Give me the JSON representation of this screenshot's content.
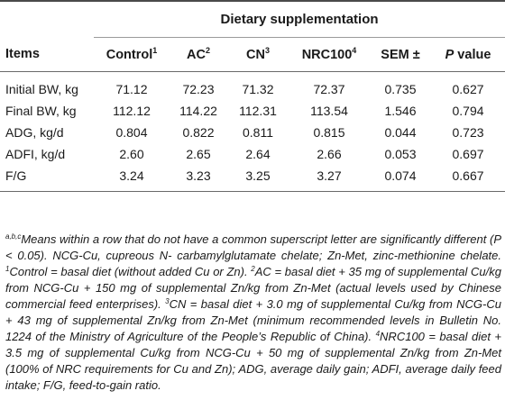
{
  "table": {
    "group_header": "Dietary supplementation",
    "columns": {
      "items": "Items",
      "control": "Control",
      "control_sup": "1",
      "ac": "AC",
      "ac_sup": "2",
      "cn": "CN",
      "cn_sup": "3",
      "nrc": "NRC100",
      "nrc_sup": "4",
      "sem": "SEM ±",
      "p_italic": "P",
      "p_rest": " value"
    },
    "rows": [
      {
        "item": "Initial BW, kg",
        "control": "71.12",
        "ac": "72.23",
        "cn": "71.32",
        "nrc": "72.37",
        "sem": "0.735",
        "p": "0.627"
      },
      {
        "item": "Final BW, kg",
        "control": "112.12",
        "ac": "114.22",
        "cn": "112.31",
        "nrc": "113.54",
        "sem": "1.546",
        "p": "0.794"
      },
      {
        "item": "ADG, kg/d",
        "control": "0.804",
        "ac": "0.822",
        "cn": "0.811",
        "nrc": "0.815",
        "sem": "0.044",
        "p": "0.723"
      },
      {
        "item": "ADFI, kg/d",
        "control": "2.60",
        "ac": "2.65",
        "cn": "2.64",
        "nrc": "2.66",
        "sem": "0.053",
        "p": "0.697"
      },
      {
        "item": "F/G",
        "control": "3.24",
        "ac": "3.23",
        "cn": "3.25",
        "nrc": "3.27",
        "sem": "0.074",
        "p": "0.667"
      }
    ]
  },
  "footnote": {
    "abc_sup": "a,b,c",
    "part1": "Means within a row that do not have a common superscript letter are significantly different (P < 0.05). NCG-Cu, cupreous N- carbamylglutamate chelate; Zn-Met, zinc-methionine chelate. ",
    "sup1": "1",
    "part2": "Control = basal diet (without added Cu or Zn). ",
    "sup2": "2",
    "part3": "AC = basal diet + 35 mg of supplemental Cu/kg from NCG-Cu + 150 mg of supplemental Zn/kg from Zn-Met (actual levels used by Chinese commercial feed enterprises). ",
    "sup3": "3",
    "part4": "CN = basal diet + 3.0 mg of supplemental Cu/kg from NCG-Cu + 43 mg of supplemental Zn/kg from Zn-Met (minimum recommended levels in Bulletin No. 1224 of the Ministry of Agriculture of the People’s Republic of China). ",
    "sup4": "4",
    "part5": "NRC100 = basal diet + 3.5 mg of supplemental Cu/kg from NCG-Cu + 50 mg of supplemental Zn/kg from Zn-Met (100% of NRC requirements for Cu and Zn); ADG, average daily gain; ADFI, average daily feed intake; F/G, feed-to-gain ratio."
  }
}
